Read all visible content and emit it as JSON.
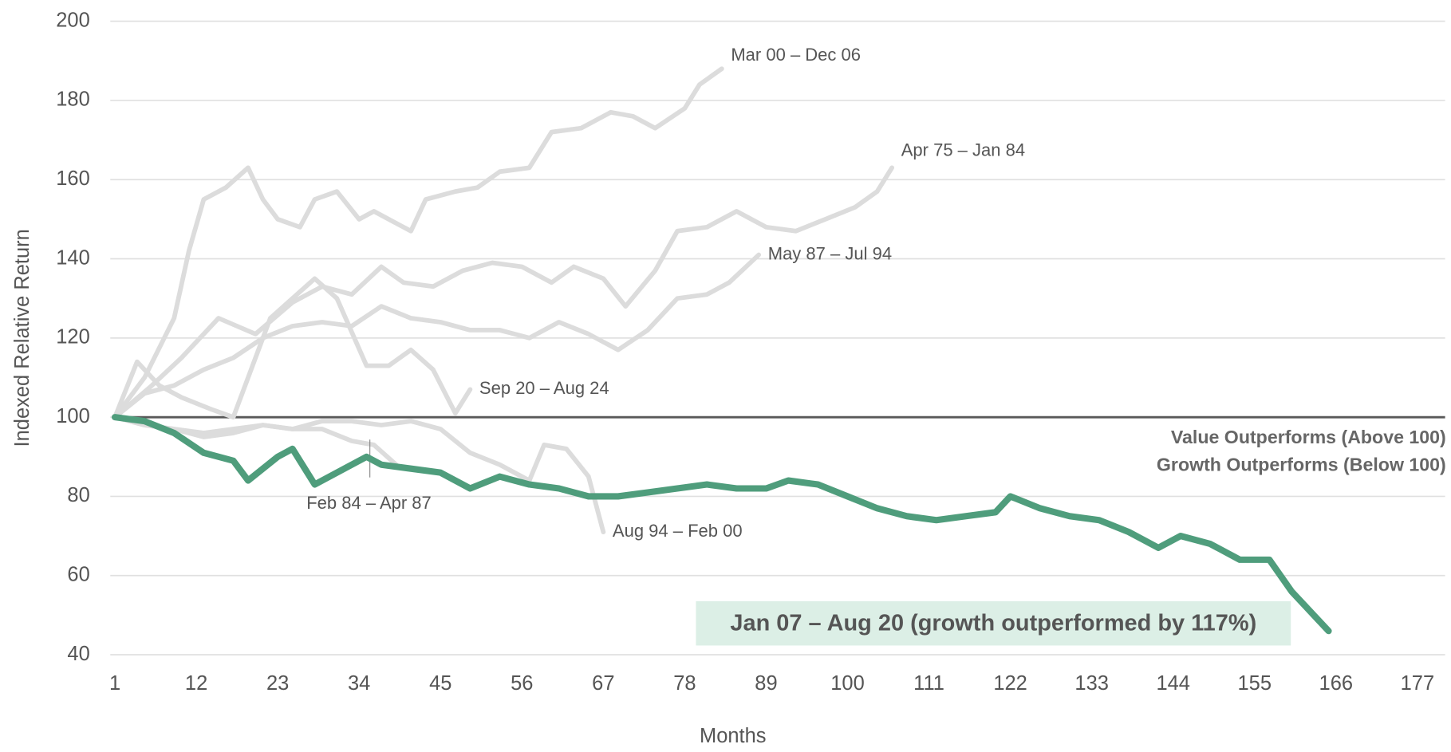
{
  "chart_data": {
    "type": "line",
    "xlabel": "Months",
    "ylabel": "Indexed Relative Return",
    "xlim": [
      1,
      177
    ],
    "xticks": [
      1,
      12,
      23,
      34,
      45,
      56,
      67,
      78,
      89,
      100,
      111,
      122,
      133,
      144,
      155,
      166,
      177
    ],
    "ylim": [
      40,
      200
    ],
    "yticks": [
      40,
      60,
      80,
      100,
      120,
      140,
      160,
      180,
      200
    ],
    "grid": true,
    "reference": {
      "value": 100,
      "color": "#595959",
      "labels": [
        "Value Outperforms (Above 100)",
        "Growth Outperforms (Below 100)"
      ]
    },
    "series": [
      {
        "name": "Mar 00 – Dec 06",
        "color": "#dcdcdc",
        "x": [
          1,
          5,
          9,
          11,
          13,
          16,
          19,
          21,
          23,
          26,
          28,
          31,
          34,
          36,
          38,
          41,
          43,
          47,
          50,
          53,
          57,
          60,
          64,
          68,
          71,
          74,
          78,
          80,
          83
        ],
        "values": [
          100,
          110,
          125,
          142,
          155,
          158,
          163,
          155,
          150,
          148,
          155,
          157,
          150,
          152,
          150,
          147,
          155,
          157,
          158,
          162,
          163,
          172,
          173,
          177,
          176,
          173,
          178,
          184,
          188
        ]
      },
      {
        "name": "Apr 75 – Jan 84",
        "color": "#dcdcdc",
        "x": [
          1,
          6,
          10,
          15,
          20,
          25,
          29,
          33,
          37,
          40,
          44,
          48,
          52,
          56,
          60,
          63,
          67,
          70,
          74,
          77,
          81,
          85,
          89,
          93,
          97,
          101,
          104,
          106
        ],
        "values": [
          100,
          108,
          115,
          125,
          121,
          129,
          133,
          131,
          138,
          134,
          133,
          137,
          139,
          138,
          134,
          138,
          135,
          128,
          137,
          147,
          148,
          152,
          148,
          147,
          150,
          153,
          157,
          163
        ]
      },
      {
        "name": "May 87 – Jul 94",
        "color": "#dcdcdc",
        "x": [
          1,
          5,
          9,
          13,
          17,
          21,
          25,
          29,
          33,
          37,
          41,
          45,
          49,
          53,
          57,
          61,
          65,
          69,
          73,
          77,
          81,
          84,
          88
        ],
        "values": [
          100,
          106,
          108,
          112,
          115,
          120,
          123,
          124,
          123,
          128,
          125,
          124,
          122,
          122,
          120,
          124,
          121,
          117,
          122,
          130,
          131,
          134,
          141
        ]
      },
      {
        "name": "Sep 20 – Aug 24",
        "color": "#dcdcdc",
        "x": [
          1,
          4,
          7,
          10,
          14,
          17,
          19,
          22,
          25,
          28,
          31,
          35,
          38,
          41,
          44,
          47,
          49
        ],
        "values": [
          100,
          114,
          108,
          105,
          102,
          100,
          110,
          125,
          130,
          135,
          130,
          113,
          113,
          117,
          112,
          101,
          107
        ]
      },
      {
        "name": "Feb 84 – Apr 87",
        "color": "#dcdcdc",
        "x": [
          1,
          5,
          9,
          13,
          17,
          21,
          25,
          29,
          33,
          36,
          39
        ],
        "values": [
          100,
          98,
          97,
          96,
          97,
          98,
          97,
          97,
          94,
          93,
          88
        ]
      },
      {
        "name": "Aug 94 – Feb 00",
        "color": "#dcdcdc",
        "x": [
          1,
          5,
          9,
          13,
          17,
          21,
          25,
          29,
          33,
          37,
          41,
          45,
          49,
          53,
          57,
          59,
          62,
          65,
          67
        ],
        "values": [
          100,
          98,
          97,
          95,
          96,
          98,
          97,
          99,
          99,
          98,
          99,
          97,
          91,
          88,
          84,
          93,
          92,
          85,
          71
        ]
      },
      {
        "name": "Jan 07 – Aug 20 (growth outperformed by 117%)",
        "color": "#4f9d7c",
        "x": [
          1,
          5,
          9,
          13,
          17,
          19,
          23,
          25,
          28,
          32,
          35,
          37,
          41,
          45,
          49,
          53,
          57,
          61,
          65,
          69,
          73,
          77,
          81,
          85,
          89,
          92,
          96,
          100,
          104,
          108,
          112,
          116,
          120,
          122,
          126,
          130,
          134,
          138,
          142,
          145,
          149,
          153,
          157,
          160,
          165
        ],
        "values": [
          100,
          99,
          96,
          91,
          89,
          84,
          90,
          92,
          83,
          87,
          90,
          88,
          87,
          86,
          82,
          85,
          83,
          82,
          80,
          80,
          81,
          82,
          83,
          82,
          82,
          84,
          83,
          80,
          77,
          75,
          74,
          75,
          76,
          80,
          77,
          75,
          74,
          71,
          67,
          70,
          68,
          64,
          64,
          56,
          46
        ]
      }
    ]
  }
}
